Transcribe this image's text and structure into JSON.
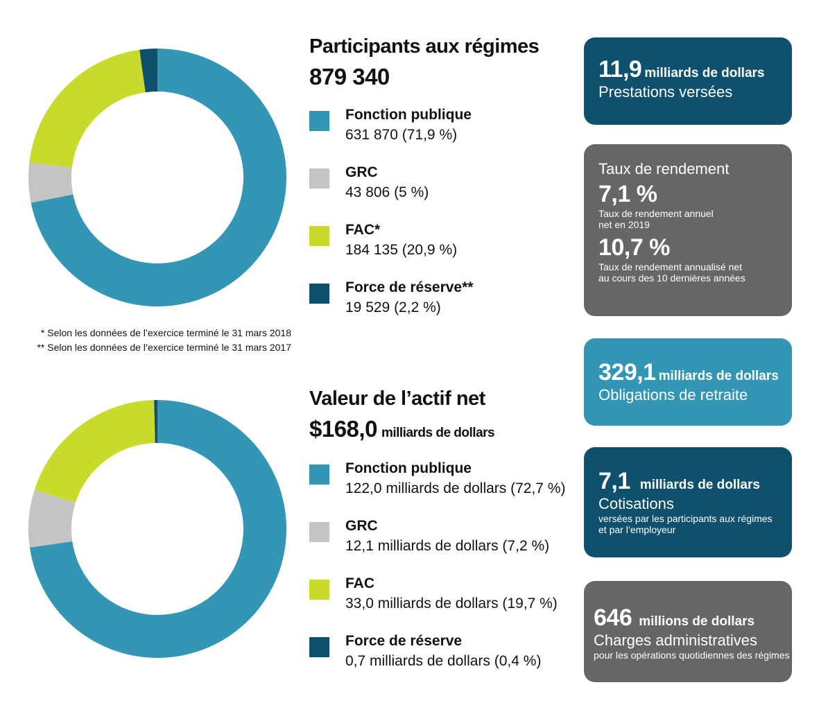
{
  "colors": {
    "public_service": "#3396b5",
    "rcmp": "#c4c4c4",
    "caf": "#c8db2d",
    "reserve": "#0e506e",
    "card_dark": "#0e506e",
    "card_gray": "#666666",
    "card_teal": "#3396b5"
  },
  "members": {
    "title": "Participants aux régimes",
    "total": "879 340",
    "legend": [
      {
        "label": "Fonction publique",
        "value": "631 870 (71,9 %)"
      },
      {
        "label": "GRC",
        "value": "43 806 (5 %)"
      },
      {
        "label": "FAC*",
        "value": "184 135 (20,9 %)"
      },
      {
        "label": "Force de réserve**",
        "value": "19 529 (2,2 %)"
      }
    ],
    "footnotes": [
      "* Selon les données de l’exercice terminé le 31 mars 2018",
      "** Selon les données de l’exercice terminé le 31 mars 2017"
    ]
  },
  "assets": {
    "title": "Valeur de l’actif net",
    "total": "$168,0",
    "total_unit": "milliards de dollars",
    "legend": [
      {
        "label": "Fonction publique",
        "value": "122,0 milliards de dollars (72,7 %)"
      },
      {
        "label": "GRC",
        "value": "12,1 milliards de dollars (7,2 %)"
      },
      {
        "label": "FAC",
        "value": "33,0 milliards de dollars (19,7 %)"
      },
      {
        "label": "Force de réserve",
        "value": "0,7 milliards de dollars (0,4 %)"
      }
    ]
  },
  "cards": {
    "benefits": {
      "value": "11,9",
      "unit": "milliards de dollars",
      "label": "Prestations versées"
    },
    "returns": {
      "heading": "Taux de rendement",
      "annual_value": "7,1 %",
      "annual_desc_1": "Taux de rendement annuel",
      "annual_desc_2": "net en 2019",
      "ten_year_value": "10,7 %",
      "ten_year_desc_1": "Taux de rendement annualisé net",
      "ten_year_desc_2": "au cours des 10 dernières années"
    },
    "obligations": {
      "value": "329,1",
      "unit": "milliards de dollars",
      "label": "Obligations de retraite"
    },
    "contributions": {
      "value": "7,1",
      "unit": "milliards de dollars",
      "label": "Cotisations",
      "desc_1": "versées par les participants aux régimes",
      "desc_2": "et par l’employeur"
    },
    "admin": {
      "value": "646",
      "unit": "millions de dollars",
      "label": "Charges administratives",
      "desc": "pour les opérations quotidiennes des régimes"
    }
  },
  "chart_data": [
    {
      "type": "pie",
      "title": "Participants aux régimes",
      "categories": [
        "Fonction publique",
        "GRC",
        "FAC*",
        "Force de réserve**"
      ],
      "values": [
        631870,
        43806,
        184135,
        19529
      ],
      "percent": [
        71.9,
        5,
        20.9,
        2.2
      ],
      "colors": [
        "#3396b5",
        "#c4c4c4",
        "#c8db2d",
        "#0e506e"
      ],
      "style": "donut"
    },
    {
      "type": "pie",
      "title": "Valeur de l’actif net",
      "categories": [
        "Fonction publique",
        "GRC",
        "FAC",
        "Force de réserve"
      ],
      "values": [
        122.0,
        12.1,
        33.0,
        0.7
      ],
      "percent": [
        72.7,
        7.2,
        19.7,
        0.4
      ],
      "colors": [
        "#3396b5",
        "#c4c4c4",
        "#c8db2d",
        "#0e506e"
      ],
      "style": "donut"
    }
  ]
}
